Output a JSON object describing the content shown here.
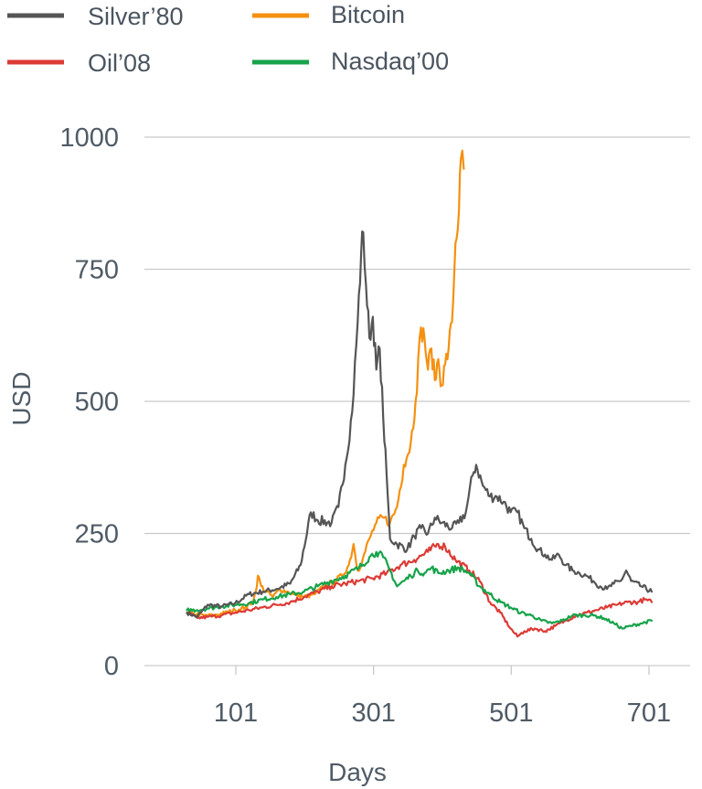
{
  "chart_data": {
    "type": "line",
    "title": "",
    "xlabel": "Days",
    "ylabel": "USD",
    "xlim": [
      1,
      740
    ],
    "ylim": [
      0,
      1000
    ],
    "x_ticks": [
      101,
      301,
      501,
      701
    ],
    "y_ticks": [
      0,
      250,
      500,
      750,
      1000
    ],
    "grid": "horizontal",
    "legend_position": "top",
    "series": [
      {
        "name": "Silver’80",
        "color": "#555555",
        "points": [
          [
            30,
            100
          ],
          [
            45,
            92
          ],
          [
            60,
            115
          ],
          [
            80,
            112
          ],
          [
            100,
            118
          ],
          [
            120,
            135
          ],
          [
            140,
            140
          ],
          [
            160,
            145
          ],
          [
            180,
            155
          ],
          [
            195,
            190
          ],
          [
            210,
            290
          ],
          [
            220,
            275
          ],
          [
            240,
            270
          ],
          [
            250,
            300
          ],
          [
            260,
            380
          ],
          [
            270,
            480
          ],
          [
            278,
            650
          ],
          [
            283,
            780
          ],
          [
            286,
            820
          ],
          [
            290,
            720
          ],
          [
            295,
            620
          ],
          [
            300,
            660
          ],
          [
            305,
            560
          ],
          [
            310,
            600
          ],
          [
            315,
            470
          ],
          [
            320,
            360
          ],
          [
            325,
            240
          ],
          [
            335,
            230
          ],
          [
            350,
            220
          ],
          [
            360,
            245
          ],
          [
            370,
            260
          ],
          [
            380,
            250
          ],
          [
            390,
            280
          ],
          [
            400,
            270
          ],
          [
            415,
            260
          ],
          [
            425,
            270
          ],
          [
            435,
            290
          ],
          [
            445,
            360
          ],
          [
            450,
            380
          ],
          [
            460,
            340
          ],
          [
            470,
            320
          ],
          [
            480,
            320
          ],
          [
            490,
            310
          ],
          [
            500,
            290
          ],
          [
            510,
            290
          ],
          [
            520,
            260
          ],
          [
            530,
            240
          ],
          [
            540,
            220
          ],
          [
            550,
            210
          ],
          [
            560,
            200
          ],
          [
            570,
            210
          ],
          [
            580,
            190
          ],
          [
            590,
            180
          ],
          [
            600,
            175
          ],
          [
            610,
            170
          ],
          [
            620,
            160
          ],
          [
            630,
            150
          ],
          [
            640,
            145
          ],
          [
            650,
            155
          ],
          [
            660,
            160
          ],
          [
            668,
            180
          ],
          [
            675,
            160
          ],
          [
            690,
            150
          ],
          [
            705,
            140
          ]
        ]
      },
      {
        "name": "Bitcoin",
        "color": "#f5900f",
        "points": [
          [
            30,
            100
          ],
          [
            40,
            98
          ],
          [
            55,
            95
          ],
          [
            70,
            95
          ],
          [
            85,
            100
          ],
          [
            100,
            105
          ],
          [
            115,
            110
          ],
          [
            125,
            120
          ],
          [
            130,
            140
          ],
          [
            133,
            170
          ],
          [
            138,
            150
          ],
          [
            145,
            140
          ],
          [
            155,
            130
          ],
          [
            165,
            145
          ],
          [
            175,
            140
          ],
          [
            185,
            135
          ],
          [
            200,
            130
          ],
          [
            215,
            135
          ],
          [
            230,
            150
          ],
          [
            245,
            160
          ],
          [
            255,
            170
          ],
          [
            265,
            190
          ],
          [
            272,
            230
          ],
          [
            278,
            180
          ],
          [
            285,
            200
          ],
          [
            295,
            240
          ],
          [
            305,
            270
          ],
          [
            315,
            280
          ],
          [
            325,
            270
          ],
          [
            335,
            300
          ],
          [
            345,
            380
          ],
          [
            355,
            420
          ],
          [
            362,
            500
          ],
          [
            370,
            640
          ],
          [
            375,
            620
          ],
          [
            380,
            560
          ],
          [
            385,
            600
          ],
          [
            390,
            540
          ],
          [
            395,
            580
          ],
          [
            400,
            530
          ],
          [
            405,
            570
          ],
          [
            410,
            600
          ],
          [
            415,
            650
          ],
          [
            420,
            800
          ],
          [
            425,
            860
          ],
          [
            428,
            960
          ],
          [
            432,
            940
          ]
        ]
      },
      {
        "name": "Oil’08",
        "color": "#dc3b36",
        "points": [
          [
            30,
            100
          ],
          [
            45,
            90
          ],
          [
            60,
            92
          ],
          [
            80,
            95
          ],
          [
            100,
            100
          ],
          [
            120,
            105
          ],
          [
            140,
            110
          ],
          [
            160,
            115
          ],
          [
            180,
            120
          ],
          [
            200,
            130
          ],
          [
            220,
            140
          ],
          [
            240,
            150
          ],
          [
            260,
            155
          ],
          [
            280,
            160
          ],
          [
            300,
            165
          ],
          [
            320,
            175
          ],
          [
            340,
            190
          ],
          [
            360,
            200
          ],
          [
            380,
            215
          ],
          [
            395,
            230
          ],
          [
            405,
            225
          ],
          [
            420,
            200
          ],
          [
            440,
            180
          ],
          [
            455,
            160
          ],
          [
            470,
            120
          ],
          [
            485,
            100
          ],
          [
            500,
            70
          ],
          [
            510,
            55
          ],
          [
            520,
            65
          ],
          [
            535,
            70
          ],
          [
            550,
            65
          ],
          [
            565,
            75
          ],
          [
            580,
            85
          ],
          [
            595,
            95
          ],
          [
            610,
            100
          ],
          [
            625,
            105
          ],
          [
            640,
            110
          ],
          [
            655,
            115
          ],
          [
            670,
            120
          ],
          [
            685,
            120
          ],
          [
            695,
            125
          ],
          [
            705,
            120
          ]
        ]
      },
      {
        "name": "Nasdaq’00",
        "color": "#17a34a",
        "points": [
          [
            30,
            105
          ],
          [
            45,
            105
          ],
          [
            60,
            108
          ],
          [
            80,
            112
          ],
          [
            100,
            115
          ],
          [
            120,
            118
          ],
          [
            140,
            125
          ],
          [
            160,
            130
          ],
          [
            180,
            135
          ],
          [
            200,
            140
          ],
          [
            220,
            150
          ],
          [
            240,
            160
          ],
          [
            260,
            170
          ],
          [
            280,
            185
          ],
          [
            295,
            205
          ],
          [
            305,
            215
          ],
          [
            315,
            205
          ],
          [
            325,
            180
          ],
          [
            335,
            150
          ],
          [
            345,
            160
          ],
          [
            355,
            170
          ],
          [
            365,
            180
          ],
          [
            375,
            175
          ],
          [
            385,
            185
          ],
          [
            395,
            175
          ],
          [
            410,
            180
          ],
          [
            425,
            185
          ],
          [
            440,
            175
          ],
          [
            455,
            150
          ],
          [
            470,
            135
          ],
          [
            485,
            120
          ],
          [
            500,
            110
          ],
          [
            515,
            100
          ],
          [
            530,
            95
          ],
          [
            545,
            85
          ],
          [
            560,
            80
          ],
          [
            575,
            85
          ],
          [
            590,
            95
          ],
          [
            605,
            95
          ],
          [
            620,
            95
          ],
          [
            635,
            90
          ],
          [
            650,
            80
          ],
          [
            662,
            70
          ],
          [
            675,
            75
          ],
          [
            690,
            80
          ],
          [
            705,
            85
          ]
        ]
      }
    ]
  }
}
